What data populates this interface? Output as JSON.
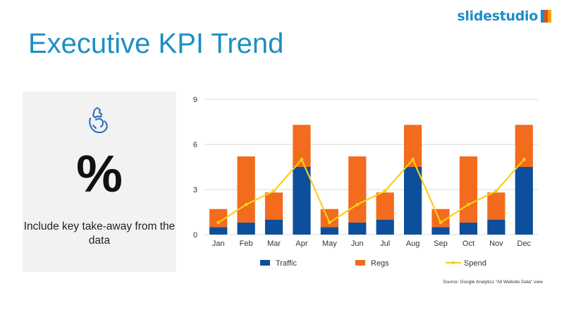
{
  "brand": {
    "name": "slidestudio",
    "mark_colors": [
      "#1a8fc7",
      "#e94e1b",
      "#f7a400"
    ]
  },
  "slide": {
    "title": "Executive KPI Trend",
    "side_panel": {
      "icon": "hand-holding-heart-icon",
      "big_symbol": "%",
      "takeaway": "Include key take-away from the data"
    },
    "source_note": "Source: Google Analytics \"All Website Data\" view"
  },
  "colors": {
    "title": "#1f8ec3",
    "traffic": "#0e4f9c",
    "regs": "#f36b1c",
    "spend": "#f7d117"
  },
  "chart_data": {
    "type": "bar",
    "categories": [
      "Jan",
      "Feb",
      "Mar",
      "Apr",
      "May",
      "Jun",
      "Jul",
      "Aug",
      "Sep",
      "Oct",
      "Nov",
      "Dec"
    ],
    "stacked": true,
    "series": [
      {
        "name": "Traffic",
        "type": "bar",
        "values": [
          0.5,
          0.8,
          1.0,
          4.5,
          0.5,
          0.8,
          1.0,
          4.5,
          0.5,
          0.8,
          1.0,
          4.5
        ]
      },
      {
        "name": "Regs",
        "type": "bar",
        "values": [
          1.2,
          4.4,
          1.8,
          2.8,
          1.2,
          4.4,
          1.8,
          2.8,
          1.2,
          4.4,
          1.8,
          2.8
        ]
      },
      {
        "name": "Spend",
        "type": "line",
        "values": [
          0.8,
          2.0,
          2.9,
          5.0,
          0.8,
          2.0,
          2.9,
          5.0,
          0.8,
          2.0,
          2.9,
          5.0
        ]
      }
    ],
    "ylim": [
      0,
      9
    ],
    "yticks": [
      0,
      3,
      6,
      9
    ],
    "grid": true,
    "legend_position": "bottom"
  }
}
